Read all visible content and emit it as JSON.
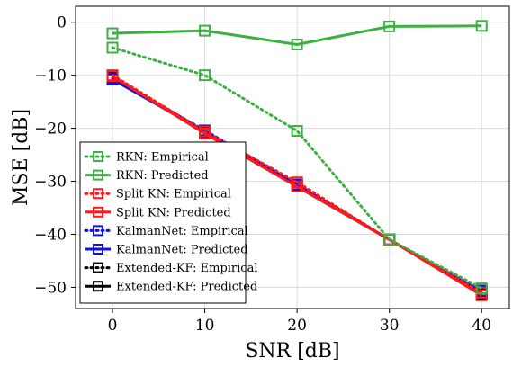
{
  "chart_data": {
    "type": "line",
    "xlabel": "SNR [dB]",
    "ylabel": "MSE [dB]",
    "xlim": [
      -4,
      43
    ],
    "ylim": [
      -54,
      3
    ],
    "xticks": [
      0,
      10,
      20,
      30,
      40
    ],
    "yticks": [
      0,
      -10,
      -20,
      -30,
      -40,
      -50
    ],
    "grid": true,
    "legend_position": "bottom-left",
    "x": [
      0,
      10,
      20,
      30,
      40
    ],
    "series": [
      {
        "name": "RKN: Empirical",
        "color": "#3cb043",
        "style": "dotted",
        "marker": "square",
        "values": [
          -4.8,
          -10.0,
          -20.5,
          -41.0,
          -50.2
        ]
      },
      {
        "name": "RKN: Predicted",
        "color": "#3cb043",
        "style": "solid",
        "marker": "square",
        "values": [
          -2.1,
          -1.6,
          -4.2,
          -0.8,
          -0.7
        ]
      },
      {
        "name": "Split KN: Empirical",
        "color": "#ff1a1a",
        "style": "dotted",
        "marker": "square",
        "values": [
          -10.0,
          -20.6,
          -30.2,
          -41.0,
          -51.0
        ]
      },
      {
        "name": "Split KN: Predicted",
        "color": "#ff1a1a",
        "style": "solid",
        "marker": "square",
        "values": [
          -10.2,
          -21.0,
          -31.0,
          -41.0,
          -51.5
        ]
      },
      {
        "name": "KalmanNet: Empirical",
        "color": "#1010e6",
        "style": "dotted",
        "marker": "square",
        "values": [
          -10.6,
          -20.4,
          -30.6,
          -41.0,
          -50.6
        ]
      },
      {
        "name": "KalmanNet: Predicted",
        "color": "#1010e6",
        "style": "solid",
        "marker": "square",
        "values": [
          -10.8,
          -20.6,
          -30.8,
          -41.0,
          -50.9
        ]
      },
      {
        "name": "Extended-KF: Empirical",
        "color": "#000000",
        "style": "dotted",
        "marker": "square",
        "values": [
          -10.5,
          -20.7,
          -30.8,
          -41.0,
          -51.0
        ]
      },
      {
        "name": "Extended-KF: Predicted",
        "color": "#000000",
        "style": "solid",
        "marker": "square",
        "values": [
          -10.5,
          -20.8,
          -31.0,
          -41.0,
          -51.2
        ]
      }
    ],
    "draw_order": [
      6,
      7,
      4,
      5,
      2,
      3,
      0,
      1
    ]
  }
}
